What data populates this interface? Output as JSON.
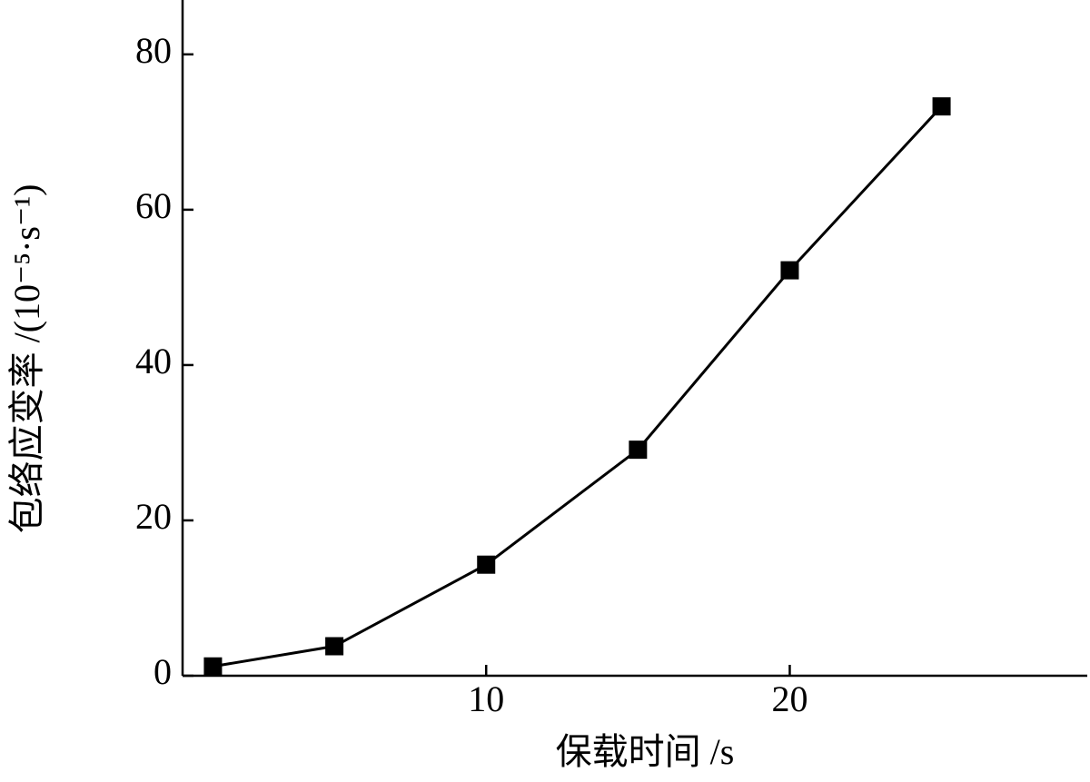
{
  "chart_data": {
    "type": "line",
    "x_label": "保载时间 /s",
    "y_label": "包络应变率 /(10⁻⁵·s⁻¹)",
    "x": [
      1,
      5,
      10,
      15,
      20,
      25
    ],
    "series": [
      {
        "color": "#000000",
        "values": [
          1.2,
          3.8,
          14.3,
          29.1,
          52.2,
          73.3
        ]
      }
    ],
    "xlim": [
      0,
      29.8
    ],
    "xticks": [
      10,
      20
    ],
    "ylim": [
      0,
      87
    ],
    "yticks": [
      0,
      20,
      40,
      60,
      80
    ],
    "grid": false
  }
}
